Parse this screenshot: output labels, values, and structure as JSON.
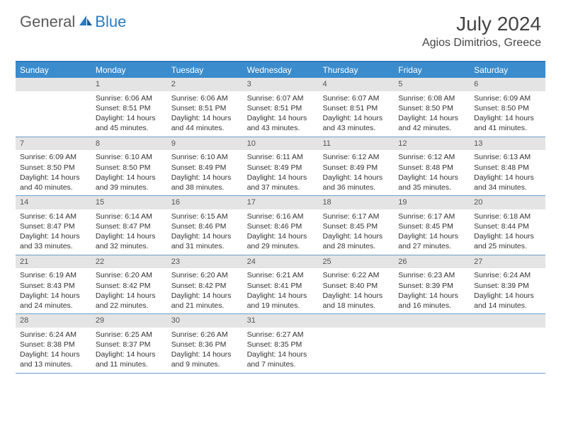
{
  "brand": {
    "part1": "General",
    "part2": "Blue"
  },
  "title": "July 2024",
  "location": "Agios Dimitrios, Greece",
  "colors": {
    "header_bar": "#3b8ccc",
    "accent": "#2b7bbf",
    "daynum_bg": "#e4e4e4",
    "row_border": "#6f9fc7",
    "text": "#333333",
    "white": "#ffffff"
  },
  "days_of_week": [
    "Sunday",
    "Monday",
    "Tuesday",
    "Wednesday",
    "Thursday",
    "Friday",
    "Saturday"
  ],
  "month": {
    "start_dow": 1,
    "num_days": 31
  },
  "days": {
    "1": {
      "sunrise": "6:06 AM",
      "sunset": "8:51 PM",
      "daylight": "14 hours and 45 minutes."
    },
    "2": {
      "sunrise": "6:06 AM",
      "sunset": "8:51 PM",
      "daylight": "14 hours and 44 minutes."
    },
    "3": {
      "sunrise": "6:07 AM",
      "sunset": "8:51 PM",
      "daylight": "14 hours and 43 minutes."
    },
    "4": {
      "sunrise": "6:07 AM",
      "sunset": "8:51 PM",
      "daylight": "14 hours and 43 minutes."
    },
    "5": {
      "sunrise": "6:08 AM",
      "sunset": "8:50 PM",
      "daylight": "14 hours and 42 minutes."
    },
    "6": {
      "sunrise": "6:09 AM",
      "sunset": "8:50 PM",
      "daylight": "14 hours and 41 minutes."
    },
    "7": {
      "sunrise": "6:09 AM",
      "sunset": "8:50 PM",
      "daylight": "14 hours and 40 minutes."
    },
    "8": {
      "sunrise": "6:10 AM",
      "sunset": "8:50 PM",
      "daylight": "14 hours and 39 minutes."
    },
    "9": {
      "sunrise": "6:10 AM",
      "sunset": "8:49 PM",
      "daylight": "14 hours and 38 minutes."
    },
    "10": {
      "sunrise": "6:11 AM",
      "sunset": "8:49 PM",
      "daylight": "14 hours and 37 minutes."
    },
    "11": {
      "sunrise": "6:12 AM",
      "sunset": "8:49 PM",
      "daylight": "14 hours and 36 minutes."
    },
    "12": {
      "sunrise": "6:12 AM",
      "sunset": "8:48 PM",
      "daylight": "14 hours and 35 minutes."
    },
    "13": {
      "sunrise": "6:13 AM",
      "sunset": "8:48 PM",
      "daylight": "14 hours and 34 minutes."
    },
    "14": {
      "sunrise": "6:14 AM",
      "sunset": "8:47 PM",
      "daylight": "14 hours and 33 minutes."
    },
    "15": {
      "sunrise": "6:14 AM",
      "sunset": "8:47 PM",
      "daylight": "14 hours and 32 minutes."
    },
    "16": {
      "sunrise": "6:15 AM",
      "sunset": "8:46 PM",
      "daylight": "14 hours and 31 minutes."
    },
    "17": {
      "sunrise": "6:16 AM",
      "sunset": "8:46 PM",
      "daylight": "14 hours and 29 minutes."
    },
    "18": {
      "sunrise": "6:17 AM",
      "sunset": "8:45 PM",
      "daylight": "14 hours and 28 minutes."
    },
    "19": {
      "sunrise": "6:17 AM",
      "sunset": "8:45 PM",
      "daylight": "14 hours and 27 minutes."
    },
    "20": {
      "sunrise": "6:18 AM",
      "sunset": "8:44 PM",
      "daylight": "14 hours and 25 minutes."
    },
    "21": {
      "sunrise": "6:19 AM",
      "sunset": "8:43 PM",
      "daylight": "14 hours and 24 minutes."
    },
    "22": {
      "sunrise": "6:20 AM",
      "sunset": "8:42 PM",
      "daylight": "14 hours and 22 minutes."
    },
    "23": {
      "sunrise": "6:20 AM",
      "sunset": "8:42 PM",
      "daylight": "14 hours and 21 minutes."
    },
    "24": {
      "sunrise": "6:21 AM",
      "sunset": "8:41 PM",
      "daylight": "14 hours and 19 minutes."
    },
    "25": {
      "sunrise": "6:22 AM",
      "sunset": "8:40 PM",
      "daylight": "14 hours and 18 minutes."
    },
    "26": {
      "sunrise": "6:23 AM",
      "sunset": "8:39 PM",
      "daylight": "14 hours and 16 minutes."
    },
    "27": {
      "sunrise": "6:24 AM",
      "sunset": "8:39 PM",
      "daylight": "14 hours and 14 minutes."
    },
    "28": {
      "sunrise": "6:24 AM",
      "sunset": "8:38 PM",
      "daylight": "14 hours and 13 minutes."
    },
    "29": {
      "sunrise": "6:25 AM",
      "sunset": "8:37 PM",
      "daylight": "14 hours and 11 minutes."
    },
    "30": {
      "sunrise": "6:26 AM",
      "sunset": "8:36 PM",
      "daylight": "14 hours and 9 minutes."
    },
    "31": {
      "sunrise": "6:27 AM",
      "sunset": "8:35 PM",
      "daylight": "14 hours and 7 minutes."
    }
  },
  "labels": {
    "sunrise_prefix": "Sunrise: ",
    "sunset_prefix": "Sunset: ",
    "daylight_prefix": "Daylight: "
  }
}
